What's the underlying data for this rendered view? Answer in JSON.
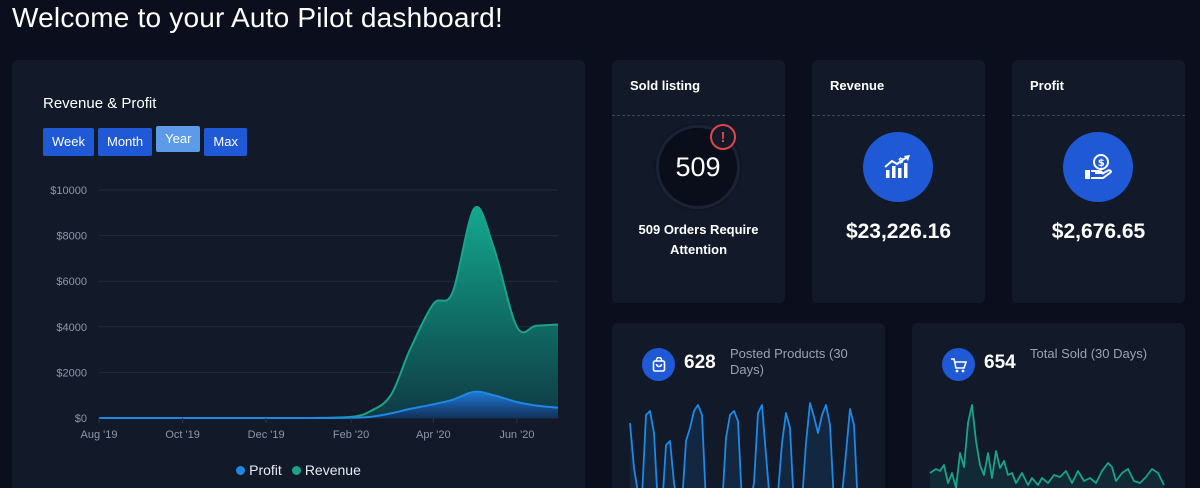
{
  "header": {
    "title": "Welcome to your Auto Pilot dashboard!"
  },
  "revenue_profit": {
    "title": "Revenue & Profit",
    "range_buttons": [
      {
        "label": "Week",
        "active": false
      },
      {
        "label": "Month",
        "active": false
      },
      {
        "label": "Year",
        "active": true
      },
      {
        "label": "Max",
        "active": false
      }
    ],
    "legend": {
      "profit": "Profit",
      "revenue": "Revenue"
    }
  },
  "chart_data": {
    "type": "area",
    "x": [
      "2019-08-01",
      "2019-09-01",
      "2019-10-01",
      "2019-11-01",
      "2019-12-01",
      "2020-01-01",
      "2020-02-01",
      "2020-02-15",
      "2020-03-01",
      "2020-03-15",
      "2020-04-01",
      "2020-04-15",
      "2020-05-01",
      "2020-05-15",
      "2020-06-01",
      "2020-06-15",
      "2020-07-01"
    ],
    "x_ticks": [
      "Aug '19",
      "Oct '19",
      "Dec '19",
      "Feb '20",
      "Apr '20",
      "Jun '20"
    ],
    "y_ticks": [
      "$0",
      "$2000",
      "$4000",
      "$6000",
      "$8000",
      "$10000"
    ],
    "ylim": [
      0,
      10000
    ],
    "series": [
      {
        "name": "Revenue",
        "color": "#1aa38a",
        "values": [
          0,
          0,
          0,
          0,
          0,
          0,
          50,
          300,
          1000,
          3000,
          5000,
          5500,
          9200,
          7500,
          4000,
          4050,
          4100
        ]
      },
      {
        "name": "Profit",
        "color": "#1e88e5",
        "values": [
          0,
          0,
          0,
          0,
          0,
          0,
          10,
          50,
          200,
          400,
          600,
          800,
          1150,
          1000,
          700,
          550,
          450
        ]
      }
    ],
    "grid": true,
    "legend": "bottom"
  },
  "sold_listing": {
    "title": "Sold listing",
    "count": "509",
    "alert_icon": "exclamation-icon",
    "message": "509 Orders Require Attention"
  },
  "revenue": {
    "title": "Revenue",
    "value": "$23,226.16",
    "icon": "revenue-growth-icon"
  },
  "profit": {
    "title": "Profit",
    "value": "$2,676.65",
    "icon": "money-hand-icon"
  },
  "posted_products": {
    "count": "628",
    "label": "Posted Products (30 Days)",
    "icon": "shopping-bag-icon",
    "line_color": "#1e88e5"
  },
  "total_sold": {
    "count": "654",
    "label": "Total Sold (30 Days)",
    "icon": "cart-icon",
    "line_color": "#1aa38a"
  }
}
